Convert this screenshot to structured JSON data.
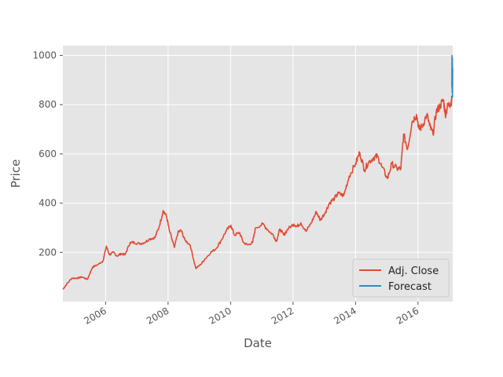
{
  "chart_data": {
    "type": "line",
    "title": "",
    "xlabel": "Date",
    "ylabel": "Price",
    "xlim": [
      "2004-08-19",
      "2017-02-10"
    ],
    "ylim": [
      0,
      1040
    ],
    "x_ticks": [
      {
        "date": "2006-01-01",
        "label": "2006"
      },
      {
        "date": "2008-01-01",
        "label": "2008"
      },
      {
        "date": "2010-01-01",
        "label": "2010"
      },
      {
        "date": "2012-01-01",
        "label": "2012"
      },
      {
        "date": "2014-01-01",
        "label": "2014"
      },
      {
        "date": "2016-01-01",
        "label": "2016"
      }
    ],
    "y_ticks": [
      200,
      400,
      600,
      800,
      1000
    ],
    "grid": true,
    "background": "#e5e5e5",
    "legend_position": "lower-right",
    "series": [
      {
        "name": "Adj. Close",
        "color": "#e24a33",
        "points": [
          [
            "2004-08-19",
            50
          ],
          [
            "2004-10-01",
            70
          ],
          [
            "2004-12-01",
            95
          ],
          [
            "2005-02-01",
            95
          ],
          [
            "2005-04-01",
            100
          ],
          [
            "2005-06-01",
            90
          ],
          [
            "2005-08-01",
            140
          ],
          [
            "2005-10-01",
            150
          ],
          [
            "2005-12-01",
            165
          ],
          [
            "2006-01-10",
            225
          ],
          [
            "2006-02-15",
            190
          ],
          [
            "2006-04-01",
            200
          ],
          [
            "2006-05-15",
            185
          ],
          [
            "2006-07-01",
            195
          ],
          [
            "2006-08-15",
            190
          ],
          [
            "2006-10-15",
            240
          ],
          [
            "2006-12-01",
            240
          ],
          [
            "2007-02-01",
            235
          ],
          [
            "2007-04-01",
            240
          ],
          [
            "2007-06-01",
            255
          ],
          [
            "2007-08-01",
            260
          ],
          [
            "2007-09-15",
            300
          ],
          [
            "2007-11-05",
            370
          ],
          [
            "2007-12-15",
            345
          ],
          [
            "2008-01-15",
            290
          ],
          [
            "2008-03-15",
            220
          ],
          [
            "2008-04-25",
            280
          ],
          [
            "2008-06-01",
            290
          ],
          [
            "2008-07-15",
            250
          ],
          [
            "2008-09-15",
            230
          ],
          [
            "2008-11-20",
            135
          ],
          [
            "2009-01-15",
            150
          ],
          [
            "2009-03-01",
            170
          ],
          [
            "2009-05-15",
            200
          ],
          [
            "2009-07-15",
            215
          ],
          [
            "2009-09-15",
            250
          ],
          [
            "2009-11-15",
            290
          ],
          [
            "2010-01-05",
            310
          ],
          [
            "2010-02-15",
            270
          ],
          [
            "2010-04-15",
            280
          ],
          [
            "2010-06-01",
            240
          ],
          [
            "2010-07-20",
            230
          ],
          [
            "2010-09-15",
            240
          ],
          [
            "2010-10-20",
            300
          ],
          [
            "2011-01-15",
            315
          ],
          [
            "2011-03-15",
            290
          ],
          [
            "2011-05-15",
            270
          ],
          [
            "2011-06-20",
            245
          ],
          [
            "2011-08-01",
            295
          ],
          [
            "2011-09-15",
            270
          ],
          [
            "2011-11-01",
            295
          ],
          [
            "2012-01-10",
            315
          ],
          [
            "2012-02-15",
            305
          ],
          [
            "2012-04-01",
            320
          ],
          [
            "2012-06-01",
            285
          ],
          [
            "2012-08-01",
            320
          ],
          [
            "2012-10-01",
            365
          ],
          [
            "2012-11-15",
            330
          ],
          [
            "2013-01-15",
            365
          ],
          [
            "2013-03-01",
            400
          ],
          [
            "2013-05-01",
            420
          ],
          [
            "2013-06-15",
            440
          ],
          [
            "2013-08-15",
            430
          ],
          [
            "2013-10-20",
            510
          ],
          [
            "2013-12-31",
            560
          ],
          [
            "2014-02-20",
            605
          ],
          [
            "2014-04-15",
            535
          ],
          [
            "2014-06-01",
            565
          ],
          [
            "2014-08-01",
            585
          ],
          [
            "2014-09-15",
            590
          ],
          [
            "2014-11-01",
            550
          ],
          [
            "2015-01-10",
            500
          ],
          [
            "2015-03-01",
            560
          ],
          [
            "2015-05-01",
            540
          ],
          [
            "2015-06-15",
            540
          ],
          [
            "2015-07-17",
            680
          ],
          [
            "2015-09-01",
            620
          ],
          [
            "2015-10-23",
            730
          ],
          [
            "2015-12-15",
            760
          ],
          [
            "2016-01-15",
            700
          ],
          [
            "2016-02-15",
            710
          ],
          [
            "2016-04-15",
            760
          ],
          [
            "2016-05-15",
            715
          ],
          [
            "2016-06-24",
            680
          ],
          [
            "2016-08-01",
            770
          ],
          [
            "2016-09-15",
            795
          ],
          [
            "2016-10-25",
            820
          ],
          [
            "2016-11-15",
            760
          ],
          [
            "2016-12-15",
            795
          ],
          [
            "2017-01-15",
            805
          ],
          [
            "2017-01-31",
            820
          ]
        ]
      },
      {
        "name": "Forecast",
        "color": "#348abd",
        "points": [
          [
            "2017-01-31",
            870
          ],
          [
            "2017-02-02",
            1000
          ],
          [
            "2017-02-04",
            850
          ],
          [
            "2017-02-06",
            990
          ],
          [
            "2017-02-08",
            830
          ],
          [
            "2017-02-10",
            950
          ]
        ]
      }
    ]
  }
}
